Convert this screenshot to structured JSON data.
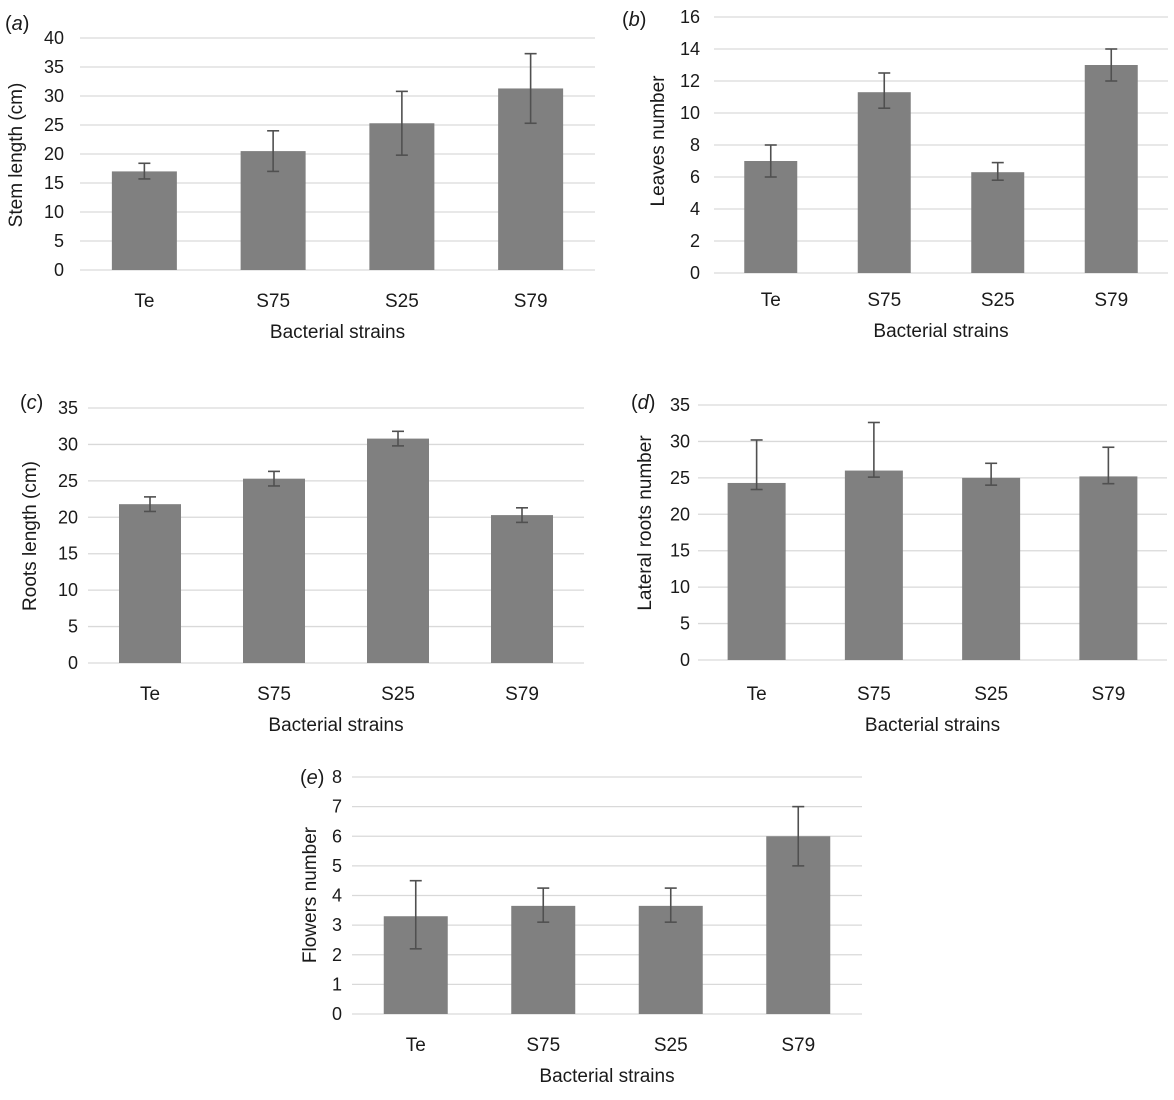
{
  "chart_data": [
    {
      "type": "bar",
      "panel_label": "(a)",
      "categories": [
        "Te",
        "S75",
        "S25",
        "S79"
      ],
      "values": [
        17,
        20.5,
        25.3,
        31.3
      ],
      "errors_upper": [
        18.4,
        24,
        30.8,
        37.3
      ],
      "errors_lower": [
        15.7,
        17,
        19.8,
        25.3
      ],
      "ylabel": "Stem length (cm)",
      "xlabel": "Bacterial strains",
      "ylim": [
        0,
        40
      ],
      "yticks": [
        0,
        5,
        10,
        15,
        20,
        25,
        30,
        35,
        40
      ],
      "grid": true,
      "bar_color": "#808080"
    },
    {
      "type": "bar",
      "panel_label": "(b)",
      "categories": [
        "Te",
        "S75",
        "S25",
        "S79"
      ],
      "values": [
        7,
        11.3,
        6.3,
        13
      ],
      "errors_upper": [
        8,
        12.5,
        6.9,
        14
      ],
      "errors_lower": [
        6,
        10.3,
        5.8,
        12
      ],
      "ylabel": "Leaves number",
      "xlabel": "Bacterial strains",
      "ylim": [
        0,
        16
      ],
      "yticks": [
        0,
        2,
        4,
        6,
        8,
        10,
        12,
        14,
        16
      ],
      "grid": true,
      "bar_color": "#808080"
    },
    {
      "type": "bar",
      "panel_label": "(c)",
      "categories": [
        "Te",
        "S75",
        "S25",
        "S79"
      ],
      "values": [
        21.8,
        25.3,
        30.8,
        20.3
      ],
      "errors_upper": [
        22.8,
        26.3,
        31.8,
        21.3
      ],
      "errors_lower": [
        20.8,
        24.3,
        29.8,
        19.3
      ],
      "ylabel": "Roots length (cm)",
      "xlabel": "Bacterial strains",
      "ylim": [
        0,
        35
      ],
      "yticks": [
        0,
        5,
        10,
        15,
        20,
        25,
        30,
        35
      ],
      "grid": true,
      "bar_color": "#808080"
    },
    {
      "type": "bar",
      "panel_label": "(d)",
      "categories": [
        "Te",
        "S75",
        "S25",
        "S79"
      ],
      "values": [
        24.3,
        26,
        25,
        25.2
      ],
      "errors_upper": [
        30.2,
        32.6,
        27,
        29.2
      ],
      "errors_lower": [
        23.4,
        25.1,
        24,
        24.2
      ],
      "ylabel": "Lateral roots number",
      "xlabel": "Bacterial strains",
      "ylim": [
        0,
        35
      ],
      "yticks": [
        0,
        5,
        10,
        15,
        20,
        25,
        30,
        35
      ],
      "grid": true,
      "bar_color": "#808080"
    },
    {
      "type": "bar",
      "panel_label": "(e)",
      "categories": [
        "Te",
        "S75",
        "S25",
        "S79"
      ],
      "values": [
        3.3,
        3.65,
        3.65,
        6
      ],
      "errors_upper": [
        4.5,
        4.25,
        4.25,
        7
      ],
      "errors_lower": [
        2.2,
        3.1,
        3.1,
        5
      ],
      "ylabel": "Flowers number",
      "xlabel": "Bacterial strains",
      "ylim": [
        0,
        8
      ],
      "yticks": [
        0,
        1,
        2,
        3,
        4,
        5,
        6,
        7,
        8
      ],
      "grid": true,
      "bar_color": "#808080"
    }
  ]
}
